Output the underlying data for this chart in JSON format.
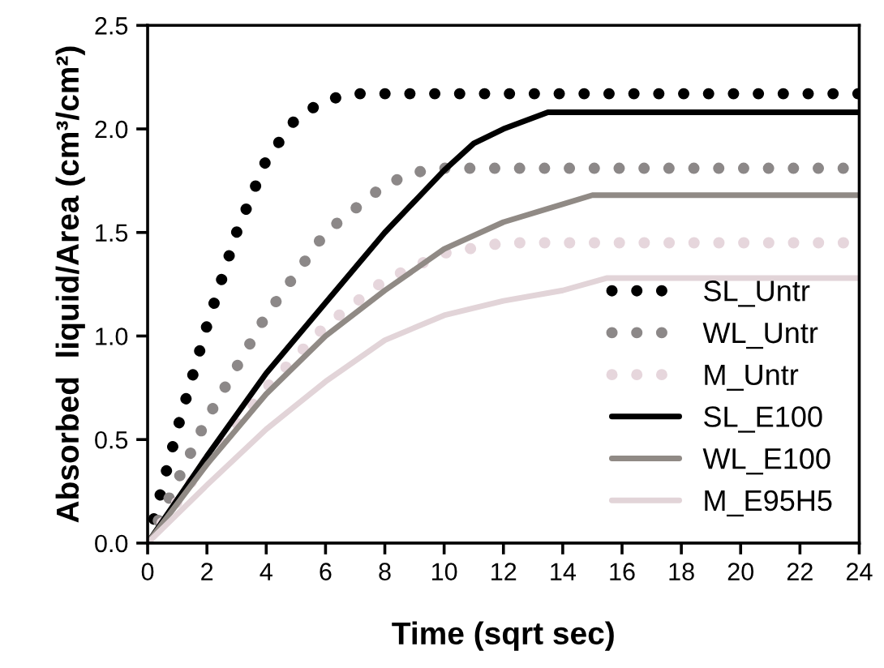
{
  "chart_data": {
    "type": "line",
    "xlabel": "Time (sqrt sec)",
    "ylabel": "Absorbed  liquid/Area (cm³/cm²)",
    "xlim": [
      0,
      24
    ],
    "xticks": [
      0,
      2,
      4,
      6,
      8,
      10,
      12,
      14,
      16,
      18,
      20,
      22,
      24
    ],
    "ylim": [
      0,
      2.5
    ],
    "yticks": [
      {
        "value": 0,
        "label": "0.0"
      },
      {
        "value": 0.5,
        "label": "0.5"
      },
      {
        "value": 1,
        "label": "1.0"
      },
      {
        "value": 1.5,
        "label": "1.5"
      },
      {
        "value": 2,
        "label": "2.0"
      },
      {
        "value": 2.5,
        "label": "2.5"
      }
    ],
    "grid": false,
    "legend": "bottom right",
    "marker": "none",
    "series": [
      {
        "name": "SL_Untr",
        "color": "#000000",
        "line_style": "dotted",
        "x": [
          0,
          1,
          2,
          3,
          4,
          5,
          6,
          7,
          24
        ],
        "values": [
          0,
          0.55,
          1.05,
          1.5,
          1.85,
          2.05,
          2.14,
          2.17,
          2.17
        ]
      },
      {
        "name": "WL_Untr",
        "color": "#8c8888",
        "line_style": "dotted",
        "x": [
          0,
          2,
          4,
          6,
          8,
          9,
          10,
          24
        ],
        "values": [
          0,
          0.6,
          1.1,
          1.5,
          1.73,
          1.79,
          1.81,
          1.81
        ]
      },
      {
        "name": "M_Untr",
        "color": "#e6d6dc",
        "line_style": "dotted",
        "x": [
          0,
          2,
          4,
          6,
          8,
          10,
          12,
          24
        ],
        "values": [
          0,
          0.4,
          0.75,
          1.05,
          1.27,
          1.4,
          1.45,
          1.45
        ]
      },
      {
        "name": "SL_E100",
        "color": "#000000",
        "line_style": "solid",
        "x": [
          0,
          2,
          4,
          6,
          8,
          10,
          11,
          12,
          13.5,
          24
        ],
        "values": [
          0,
          0.42,
          0.82,
          1.16,
          1.5,
          1.8,
          1.93,
          2.0,
          2.08,
          2.08
        ]
      },
      {
        "name": "WL_E100",
        "color": "#908a85",
        "line_style": "solid",
        "x": [
          0,
          2,
          4,
          6,
          8,
          10,
          12,
          15,
          24
        ],
        "values": [
          0,
          0.38,
          0.72,
          1.0,
          1.22,
          1.42,
          1.55,
          1.68,
          1.68
        ]
      },
      {
        "name": "M_E95H5",
        "color": "#e2d4d8",
        "line_style": "solid",
        "x": [
          0,
          2,
          4,
          6,
          8,
          10,
          12,
          14,
          15.5,
          24
        ],
        "values": [
          0,
          0.28,
          0.55,
          0.78,
          0.98,
          1.1,
          1.17,
          1.22,
          1.28,
          1.28
        ]
      }
    ]
  }
}
